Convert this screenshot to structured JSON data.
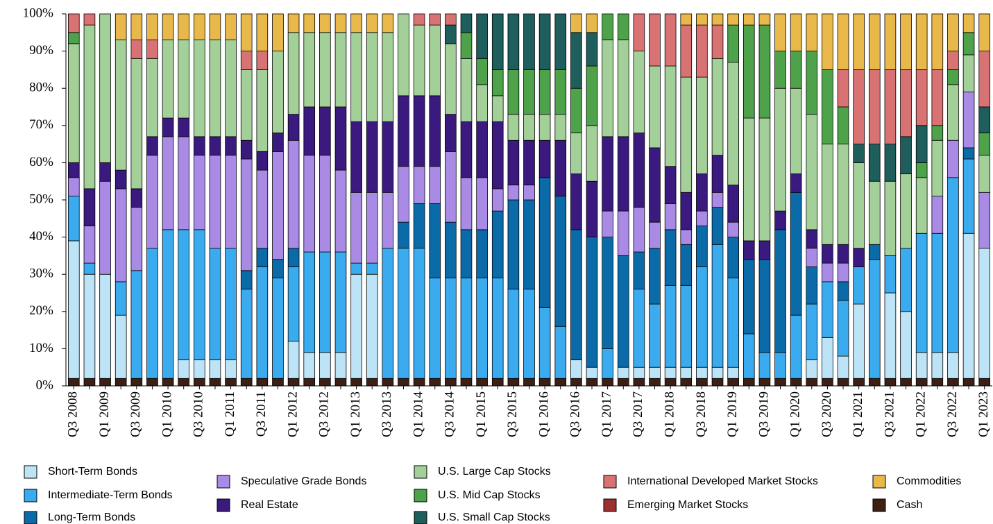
{
  "chart_data": {
    "type": "stacked_bar",
    "categories": [
      "Q3 2008",
      null,
      "Q1 2009",
      null,
      "Q3 2009",
      null,
      "Q1 2010",
      null,
      "Q3 2010",
      null,
      "Q1 2011",
      null,
      "Q3 2011",
      null,
      "Q1 2012",
      null,
      "Q3 2012",
      null,
      "Q1 2013",
      null,
      "Q3 2013",
      null,
      "Q1 2014",
      null,
      "Q3 2014",
      null,
      "Q1 2015",
      null,
      "Q3 2015",
      null,
      "Q1 2016",
      null,
      "Q3 2016",
      null,
      "Q1 2017",
      null,
      "Q3 2017",
      null,
      "Q1 2018",
      null,
      "Q3 2018",
      null,
      "Q1 2019",
      null,
      "Q3 2019",
      null,
      "Q1 2020",
      null,
      "Q3 2020",
      null,
      "Q1 2021",
      null,
      "Q3 2021",
      null,
      "Q1 2022",
      null,
      "Q3 2022",
      null,
      "Q1 2023"
    ],
    "ylim": [
      0,
      100
    ],
    "yticks": [
      {
        "value": 0,
        "label": "0%"
      },
      {
        "value": 10,
        "label": "10%"
      },
      {
        "value": 20,
        "label": "20%"
      },
      {
        "value": 30,
        "label": "30%"
      },
      {
        "value": 40,
        "label": "40%"
      },
      {
        "value": 50,
        "label": "50%"
      },
      {
        "value": 60,
        "label": "60%"
      },
      {
        "value": 70,
        "label": "70%"
      },
      {
        "value": 80,
        "label": "80%"
      },
      {
        "value": 90,
        "label": "90%"
      },
      {
        "value": 100,
        "label": "100%"
      }
    ],
    "series": [
      {
        "name": "Cash",
        "color": "#3d1f14",
        "values": [
          2,
          2,
          2,
          2,
          2,
          2,
          2,
          2,
          2,
          2,
          2,
          2,
          2,
          2,
          2,
          2,
          2,
          2,
          2,
          2,
          2,
          2,
          2,
          2,
          2,
          2,
          2,
          2,
          2,
          2,
          2,
          2,
          2,
          2,
          2,
          2,
          2,
          2,
          2,
          2,
          2,
          2,
          2,
          2,
          2,
          2,
          2,
          2,
          2,
          2,
          2,
          2,
          2,
          2,
          2,
          2,
          2,
          2,
          2
        ]
      },
      {
        "name": "Short-Term Bonds",
        "color": "#bde3f7",
        "values": [
          37,
          28,
          28,
          17,
          0,
          0,
          0,
          5,
          5,
          5,
          5,
          0,
          0,
          0,
          10,
          7,
          7,
          7,
          28,
          28,
          0,
          0,
          0,
          0,
          0,
          0,
          0,
          0,
          0,
          0,
          0,
          0,
          5,
          3,
          0,
          3,
          3,
          3,
          3,
          3,
          3,
          3,
          3,
          0,
          0,
          0,
          0,
          5,
          11,
          6,
          20,
          0,
          23,
          18,
          7,
          7,
          7,
          39,
          35
        ]
      },
      {
        "name": "Intermediate-Term Bonds",
        "color": "#3aabef",
        "values": [
          12,
          3,
          0,
          9,
          29,
          35,
          40,
          35,
          35,
          30,
          30,
          24,
          30,
          27,
          20,
          27,
          27,
          27,
          3,
          3,
          35,
          35,
          35,
          27,
          27,
          27,
          27,
          27,
          24,
          24,
          19,
          14,
          0,
          0,
          8,
          0,
          21,
          17,
          22,
          22,
          27,
          33,
          24,
          12,
          7,
          7,
          17,
          15,
          15,
          15,
          10,
          32,
          10,
          17,
          32,
          32,
          47,
          20,
          0
        ]
      },
      {
        "name": "Long-Term Bonds",
        "color": "#0b6aa8",
        "values": [
          0,
          0,
          0,
          0,
          0,
          0,
          0,
          0,
          0,
          0,
          0,
          5,
          5,
          5,
          5,
          0,
          0,
          0,
          0,
          0,
          0,
          7,
          12,
          20,
          15,
          13,
          13,
          18,
          24,
          24,
          35,
          35,
          35,
          35,
          30,
          30,
          10,
          15,
          15,
          11,
          11,
          10,
          11,
          20,
          25,
          33,
          33,
          10,
          0,
          5,
          0,
          4,
          0,
          0,
          0,
          0,
          0,
          3,
          0
        ]
      },
      {
        "name": "Speculative Grade Bonds",
        "color": "#a98be6",
        "values": [
          5,
          10,
          25,
          25,
          17,
          25,
          25,
          25,
          20,
          25,
          25,
          30,
          21,
          29,
          29,
          26,
          26,
          22,
          19,
          19,
          15,
          15,
          10,
          10,
          19,
          14,
          14,
          6,
          4,
          4,
          0,
          0,
          0,
          0,
          7,
          12,
          12,
          7,
          7,
          4,
          4,
          4,
          4,
          0,
          0,
          0,
          0,
          5,
          5,
          5,
          0,
          0,
          0,
          0,
          0,
          10,
          10,
          15,
          15
        ]
      },
      {
        "name": "Real Estate",
        "color": "#3a1a7f",
        "values": [
          4,
          10,
          5,
          5,
          5,
          5,
          5,
          5,
          5,
          5,
          5,
          5,
          5,
          5,
          7,
          13,
          13,
          17,
          19,
          19,
          19,
          19,
          19,
          19,
          10,
          15,
          15,
          18,
          12,
          12,
          10,
          15,
          15,
          15,
          20,
          20,
          20,
          20,
          10,
          10,
          10,
          10,
          10,
          5,
          5,
          5,
          5,
          5,
          5,
          5,
          5,
          0,
          0,
          0,
          0,
          0,
          0,
          0,
          0
        ]
      },
      {
        "name": "U.S. Large Cap Stocks",
        "color": "#a3cf98",
        "values": [
          32,
          44,
          40,
          35,
          35,
          21,
          21,
          21,
          26,
          26,
          26,
          19,
          22,
          22,
          22,
          20,
          20,
          20,
          24,
          24,
          24,
          22,
          19,
          19,
          19,
          17,
          10,
          7,
          7,
          7,
          7,
          7,
          11,
          15,
          26,
          26,
          22,
          22,
          27,
          31,
          26,
          26,
          33,
          33,
          33,
          33,
          23,
          31,
          27,
          27,
          23,
          17,
          20,
          20,
          15,
          15,
          15,
          10,
          10
        ]
      },
      {
        "name": "U.S. Mid Cap Stocks",
        "color": "#4ea24a",
        "values": [
          3,
          0,
          0,
          0,
          0,
          0,
          0,
          0,
          0,
          0,
          0,
          0,
          0,
          0,
          0,
          0,
          0,
          0,
          0,
          0,
          0,
          0,
          0,
          0,
          0,
          7,
          7,
          7,
          12,
          12,
          12,
          12,
          12,
          16,
          7,
          7,
          0,
          0,
          0,
          0,
          0,
          0,
          10,
          25,
          25,
          10,
          10,
          17,
          20,
          10,
          0,
          0,
          0,
          0,
          4,
          4,
          4,
          6,
          6
        ]
      },
      {
        "name": "U.S. Small Cap Stocks",
        "color": "#1e5e5c",
        "values": [
          0,
          0,
          0,
          0,
          0,
          0,
          0,
          0,
          0,
          0,
          0,
          0,
          0,
          0,
          0,
          0,
          0,
          0,
          0,
          0,
          0,
          0,
          0,
          0,
          5,
          5,
          12,
          15,
          15,
          15,
          15,
          15,
          15,
          9,
          0,
          0,
          0,
          0,
          0,
          0,
          0,
          0,
          0,
          0,
          0,
          0,
          0,
          0,
          0,
          0,
          5,
          10,
          10,
          10,
          10,
          0,
          0,
          0,
          7
        ]
      },
      {
        "name": "International Developed Market Stocks",
        "color": "#d97373",
        "values": [
          5,
          3,
          0,
          0,
          5,
          5,
          0,
          0,
          0,
          0,
          0,
          5,
          5,
          0,
          0,
          0,
          0,
          0,
          0,
          0,
          0,
          0,
          3,
          3,
          3,
          0,
          0,
          0,
          0,
          0,
          0,
          0,
          0,
          0,
          0,
          0,
          10,
          14,
          14,
          14,
          14,
          9,
          0,
          0,
          0,
          0,
          0,
          0,
          0,
          10,
          20,
          20,
          20,
          18,
          15,
          15,
          5,
          0,
          15
        ]
      },
      {
        "name": "Emerging Market Stocks",
        "color": "#9b3030",
        "values": [
          0,
          0,
          0,
          0,
          0,
          0,
          0,
          0,
          0,
          0,
          0,
          0,
          0,
          0,
          0,
          0,
          0,
          0,
          0,
          0,
          0,
          0,
          0,
          0,
          0,
          0,
          0,
          0,
          0,
          0,
          0,
          0,
          0,
          0,
          0,
          0,
          0,
          0,
          0,
          0,
          0,
          0,
          0,
          0,
          0,
          0,
          0,
          0,
          0,
          0,
          0,
          0,
          0,
          0,
          0,
          0,
          0,
          0,
          0
        ]
      },
      {
        "name": "Commodities",
        "color": "#e8b84a",
        "values": [
          0,
          0,
          0,
          7,
          7,
          7,
          7,
          7,
          7,
          7,
          7,
          10,
          10,
          10,
          5,
          5,
          5,
          5,
          5,
          5,
          5,
          0,
          0,
          0,
          0,
          0,
          0,
          0,
          0,
          0,
          0,
          0,
          5,
          5,
          0,
          0,
          0,
          0,
          0,
          3,
          3,
          3,
          3,
          3,
          3,
          10,
          10,
          10,
          15,
          15,
          15,
          15,
          15,
          15,
          15,
          15,
          10,
          5,
          10
        ]
      }
    ]
  }
}
